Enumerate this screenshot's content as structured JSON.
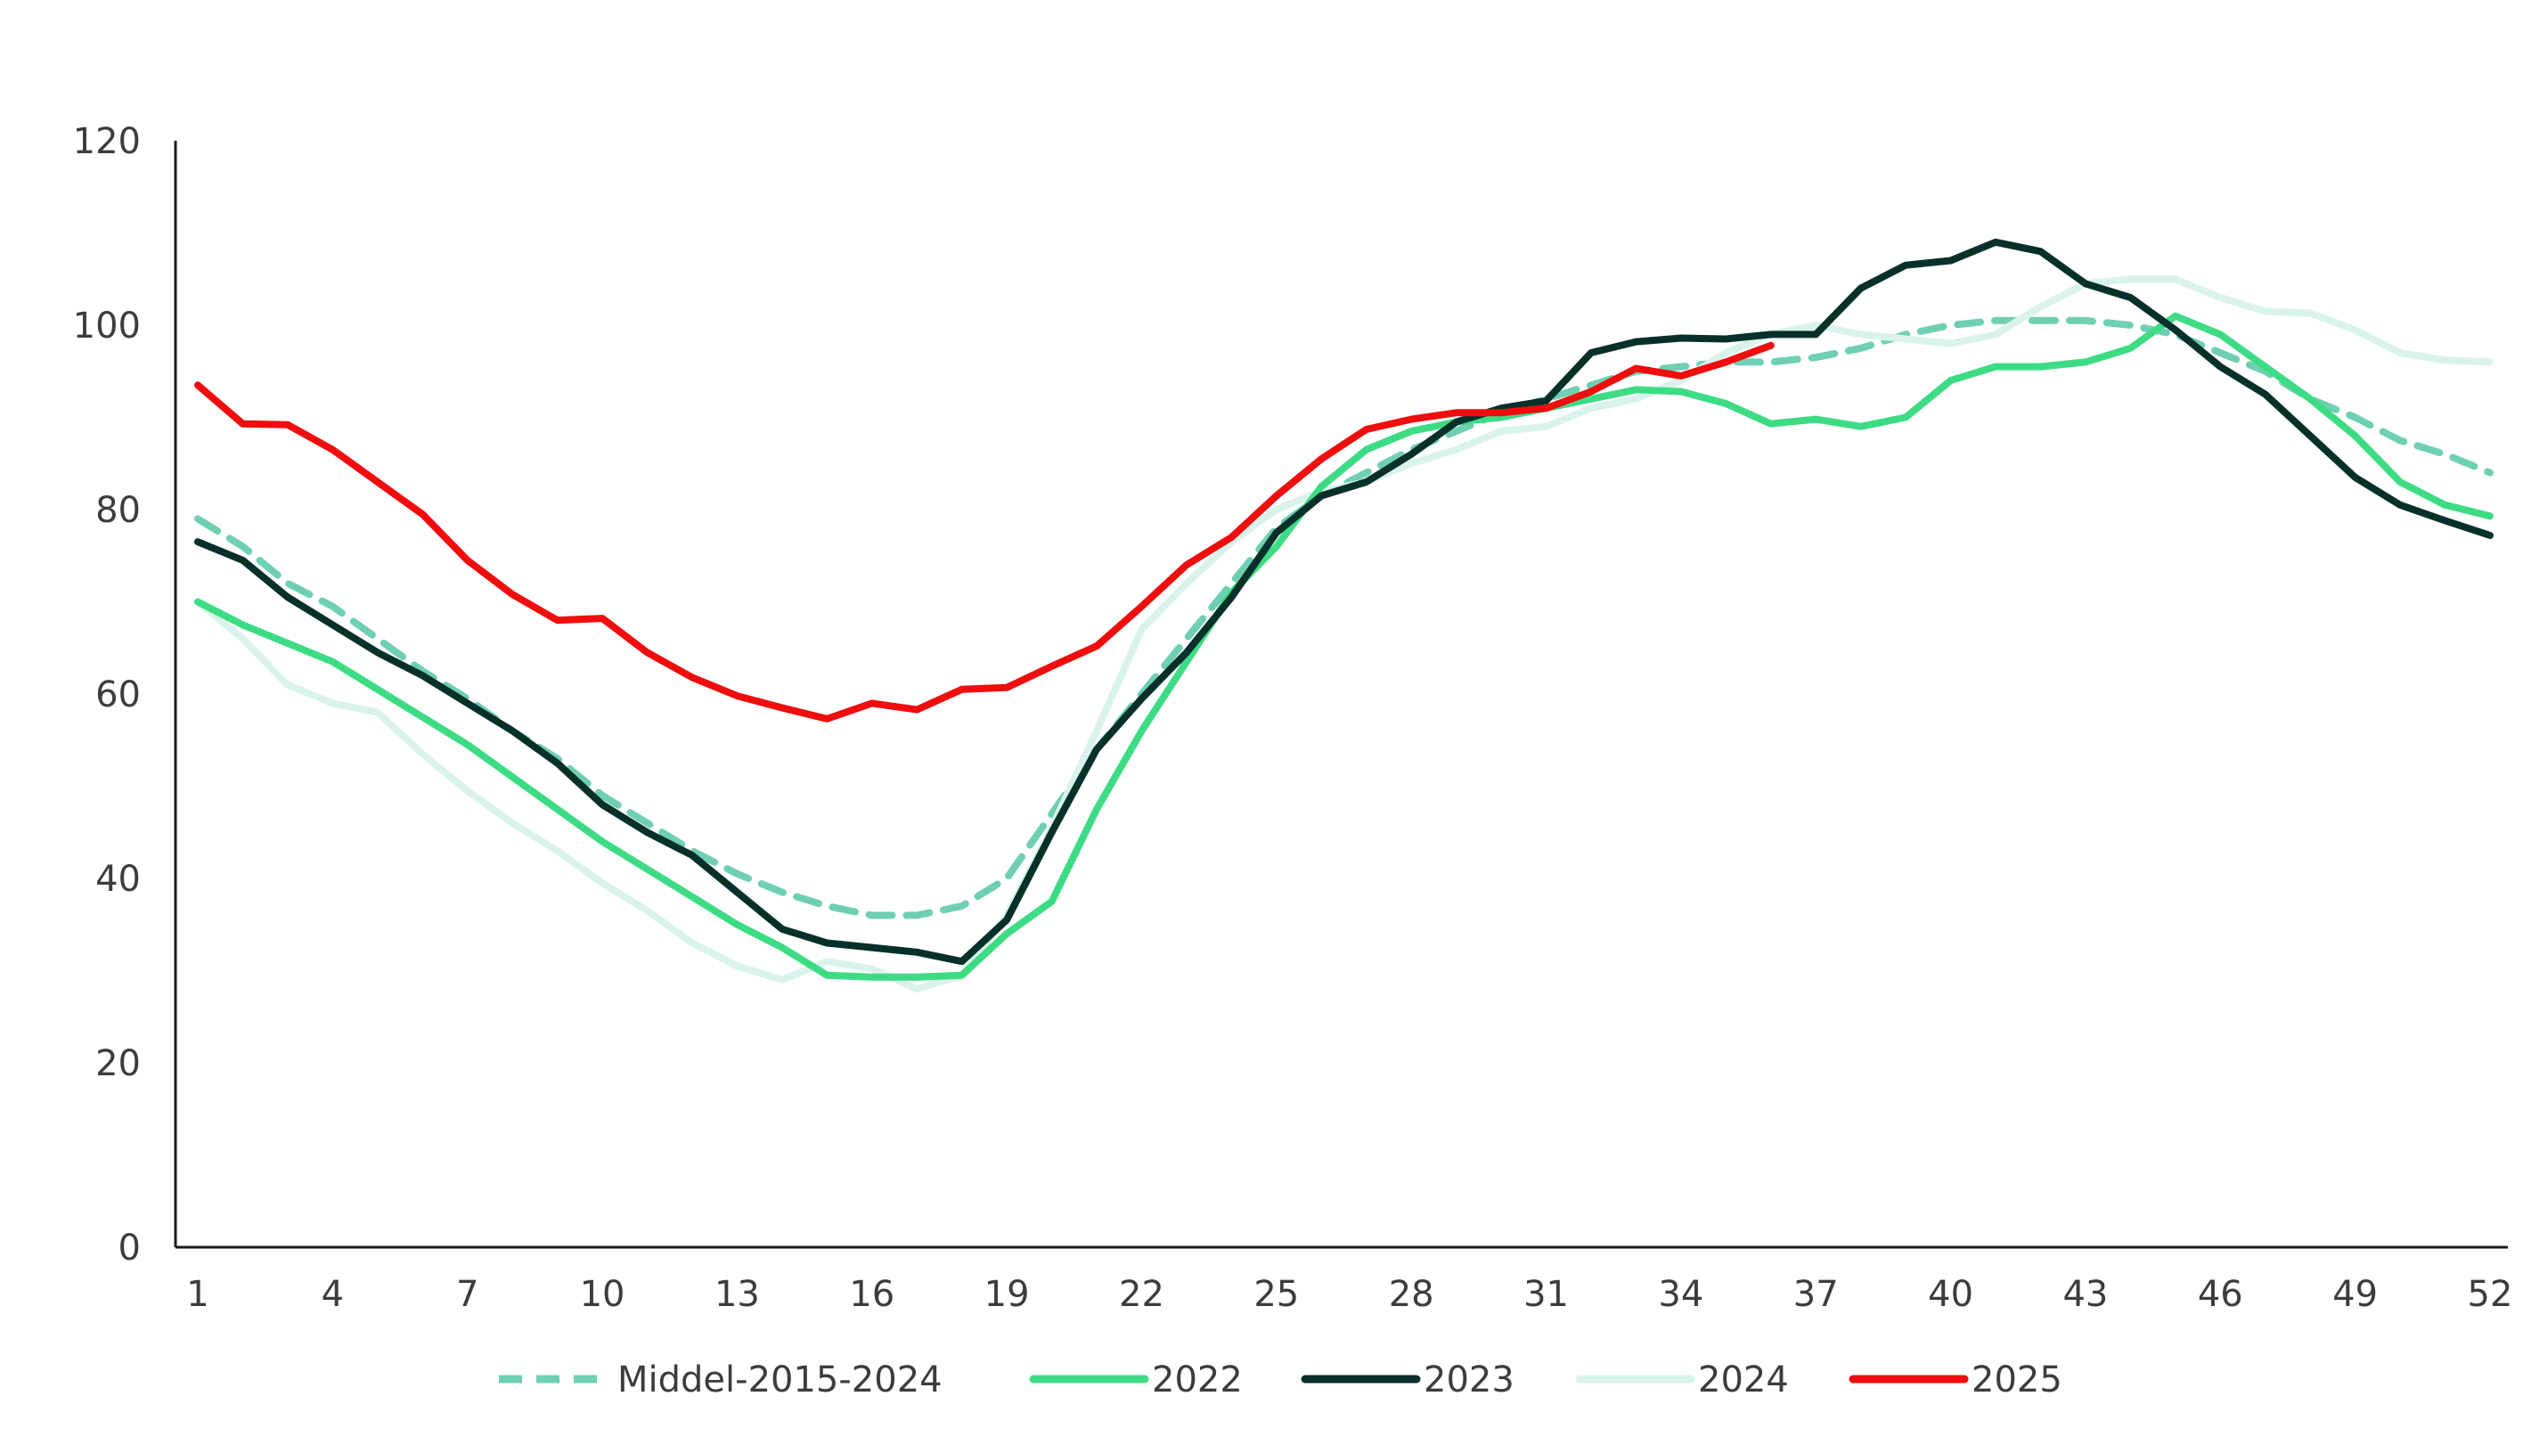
{
  "chart_data": {
    "type": "line",
    "title": "",
    "xlabel": "",
    "ylabel": "",
    "ylim": [
      0,
      120
    ],
    "xlim": [
      1,
      52
    ],
    "y_ticks": [
      0,
      20,
      40,
      60,
      80,
      100,
      120
    ],
    "x_ticks": [
      1,
      4,
      7,
      10,
      13,
      16,
      19,
      22,
      25,
      28,
      31,
      34,
      37,
      40,
      43,
      46,
      49,
      52
    ],
    "grid": false,
    "legend_position": "bottom",
    "series": [
      {
        "name": "Middel-2015-2024",
        "color": "#6fcfb3",
        "dashed": true,
        "x": [
          1,
          2,
          3,
          4,
          5,
          6,
          7,
          8,
          9,
          10,
          11,
          12,
          13,
          14,
          15,
          16,
          17,
          18,
          19,
          20,
          21,
          22,
          23,
          24,
          25,
          26,
          27,
          28,
          29,
          30,
          31,
          32,
          33,
          34,
          35,
          36,
          37,
          38,
          39,
          40,
          41,
          42,
          43,
          44,
          45,
          46,
          47,
          48,
          49,
          50,
          51,
          52
        ],
        "values": [
          79,
          76,
          72,
          69.5,
          66,
          62.5,
          59.5,
          56,
          53,
          49,
          46,
          43,
          40.5,
          38.5,
          37,
          36,
          36,
          37,
          40,
          47,
          54,
          60,
          66,
          72,
          78,
          81.5,
          84,
          86.5,
          88.5,
          90.5,
          92,
          93.5,
          95,
          95.5,
          96,
          96,
          96.5,
          97.5,
          99,
          100,
          100.5,
          100.5,
          100.5,
          100,
          99,
          97,
          95,
          92,
          90,
          87.5,
          86,
          84
        ]
      },
      {
        "name": "2022",
        "color": "#3ddc84",
        "dashed": false,
        "x": [
          1,
          2,
          3,
          4,
          5,
          6,
          7,
          8,
          9,
          10,
          11,
          12,
          13,
          14,
          15,
          16,
          17,
          18,
          19,
          20,
          21,
          22,
          23,
          24,
          25,
          26,
          27,
          28,
          29,
          30,
          31,
          32,
          33,
          34,
          35,
          36,
          37,
          38,
          39,
          40,
          41,
          42,
          43,
          44,
          45,
          46,
          47,
          48,
          49,
          50,
          51,
          52
        ],
        "values": [
          70,
          67.5,
          65.5,
          63.5,
          60.5,
          57.5,
          54.5,
          51,
          47.5,
          44,
          41,
          38,
          35,
          32.5,
          29.5,
          29.3,
          29.3,
          29.5,
          34,
          37.5,
          47.5,
          56,
          63.5,
          71,
          76,
          82.5,
          86.5,
          88.5,
          89.5,
          90,
          91,
          92,
          93,
          92.8,
          91.5,
          89.3,
          89.8,
          89,
          90,
          94,
          95.5,
          95.5,
          96,
          97.5,
          101,
          99,
          95.5,
          92,
          88,
          83,
          80.5,
          79.3
        ]
      },
      {
        "name": "2023",
        "color": "#08302b",
        "dashed": false,
        "x": [
          1,
          2,
          3,
          4,
          5,
          6,
          7,
          8,
          9,
          10,
          11,
          12,
          13,
          14,
          15,
          16,
          17,
          18,
          19,
          20,
          21,
          22,
          23,
          24,
          25,
          26,
          27,
          28,
          29,
          30,
          31,
          32,
          33,
          34,
          35,
          36,
          37,
          38,
          39,
          40,
          41,
          42,
          43,
          44,
          45,
          46,
          47,
          48,
          49,
          50,
          51,
          52
        ],
        "values": [
          76.5,
          74.5,
          70.5,
          67.5,
          64.5,
          62,
          59,
          56,
          52.5,
          48,
          45,
          42.5,
          38.5,
          34.5,
          33,
          32.5,
          32,
          31,
          35.5,
          45,
          54,
          59.5,
          64.5,
          70.5,
          77.5,
          81.5,
          83,
          86,
          89.5,
          91,
          91.8,
          97,
          98.2,
          98.6,
          98.5,
          99,
          99,
          104,
          106.5,
          107,
          109,
          108,
          104.5,
          103,
          99.5,
          95.5,
          92.5,
          88,
          83.5,
          80.5,
          78.8,
          77.2
        ]
      },
      {
        "name": "2024",
        "color": "#d9f3ea",
        "dashed": false,
        "x": [
          1,
          2,
          3,
          4,
          5,
          6,
          7,
          8,
          9,
          10,
          11,
          12,
          13,
          14,
          15,
          16,
          17,
          18,
          19,
          20,
          21,
          22,
          23,
          24,
          25,
          26,
          27,
          28,
          29,
          30,
          31,
          32,
          33,
          34,
          35,
          36,
          37,
          38,
          39,
          40,
          41,
          42,
          43,
          44,
          45,
          46,
          47,
          48,
          49,
          50,
          51,
          52
        ],
        "values": [
          70,
          66,
          61,
          59,
          58,
          53.5,
          49.5,
          46,
          43,
          39.5,
          36.5,
          33,
          30.5,
          29,
          31,
          30.2,
          28,
          29.5,
          36,
          45.5,
          56,
          67,
          72,
          76.5,
          80,
          82,
          83,
          85,
          86.5,
          88.5,
          89,
          91,
          92,
          94,
          97,
          99,
          100,
          99,
          98.5,
          98,
          99,
          102,
          104.5,
          105,
          105,
          103,
          101.5,
          101.3,
          99.5,
          97,
          96.2,
          96
        ]
      },
      {
        "name": "2025",
        "color": "#ef0d0d",
        "dashed": false,
        "x": [
          1,
          2,
          3,
          4,
          5,
          6,
          7,
          8,
          9,
          10,
          11,
          12,
          13,
          14,
          15,
          16,
          17,
          18,
          19,
          20,
          21,
          22,
          23,
          24,
          25,
          26,
          27,
          28,
          29,
          30,
          31,
          32,
          33,
          34,
          35,
          36
        ],
        "values": [
          93.5,
          89.3,
          89.2,
          86.5,
          83,
          79.5,
          74.5,
          70.8,
          68,
          68.2,
          64.5,
          61.8,
          59.8,
          58.5,
          57.3,
          59,
          58.3,
          60.5,
          60.7,
          63,
          65.2,
          69.5,
          74,
          77,
          81.5,
          85.5,
          88.7,
          89.8,
          90.5,
          90.5,
          91,
          92.8,
          95.3,
          94.5,
          96,
          97.8
        ]
      }
    ]
  }
}
